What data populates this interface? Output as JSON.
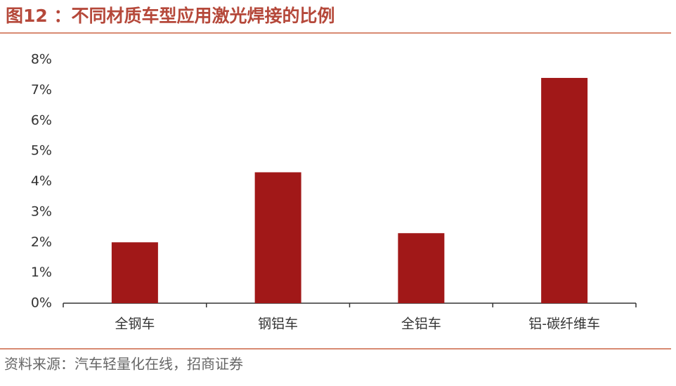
{
  "chart_data": {
    "type": "bar",
    "title": "图12 ：不同材质车型应用激光焊接的比例",
    "source": "资料来源：汽车轻量化在线，招商证券",
    "categories": [
      "全钢车",
      "钢铝车",
      "全铝车",
      "铝-碳纤维车"
    ],
    "values": [
      2.0,
      4.3,
      2.3,
      7.4
    ],
    "color": "#a11818",
    "ylim": [
      0,
      8
    ],
    "yticks": [
      {
        "value": 0,
        "label": "0%"
      },
      {
        "value": 1,
        "label": "1%"
      },
      {
        "value": 2,
        "label": "2%"
      },
      {
        "value": 3,
        "label": "3%"
      },
      {
        "value": 4,
        "label": "4%"
      },
      {
        "value": 5,
        "label": "5%"
      },
      {
        "value": 6,
        "label": "6%"
      },
      {
        "value": 7,
        "label": "7%"
      },
      {
        "value": 8,
        "label": "8%"
      }
    ],
    "grid": false
  }
}
